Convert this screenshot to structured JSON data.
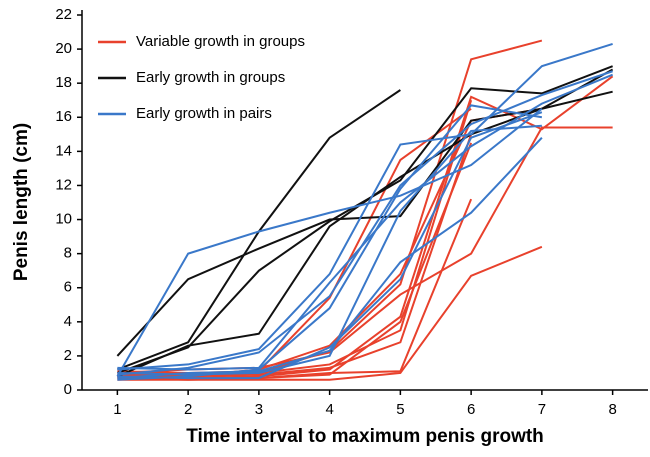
{
  "chart_data": {
    "type": "line",
    "y_label": "Penis length (cm)",
    "x_label": "Time interval to maximum penis growth",
    "x": [
      1,
      2,
      3,
      4,
      5,
      6,
      7,
      8
    ],
    "xlim": [
      0.5,
      8.5
    ],
    "xticks": [
      1,
      2,
      3,
      4,
      5,
      6,
      7,
      8
    ],
    "ylim": [
      0,
      22
    ],
    "yticks": [
      0,
      2,
      4,
      6,
      8,
      10,
      12,
      14,
      16,
      18,
      20,
      22
    ],
    "legend": "top-left",
    "series": [
      {
        "name": "Variable growth in groups",
        "color": "#e8412c",
        "lines": [
          [
            0.9,
            0.8,
            1.0,
            2.3,
            6.2,
            19.4,
            20.5,
            null
          ],
          [
            0.8,
            0.7,
            0.8,
            1.2,
            4.3,
            17.2,
            15.3,
            18.4
          ],
          [
            0.7,
            0.6,
            0.6,
            0.6,
            1.0,
            6.7,
            8.4,
            null
          ],
          [
            1.0,
            1.2,
            1.3,
            2.2,
            5.6,
            8.0,
            15.4,
            15.4
          ],
          [
            0.8,
            0.7,
            0.7,
            1.0,
            1.1,
            11.2,
            null,
            null
          ],
          [
            0.9,
            0.9,
            1.0,
            1.5,
            3.5,
            17.0,
            null,
            null
          ],
          [
            0.7,
            0.8,
            0.9,
            1.3,
            2.8,
            15.0,
            null,
            null
          ],
          [
            1.1,
            1.0,
            1.1,
            5.4,
            13.5,
            16.5,
            null,
            null
          ],
          [
            0.6,
            0.6,
            0.7,
            0.9,
            4.0,
            14.5,
            null,
            null
          ],
          [
            0.8,
            0.8,
            1.2,
            2.6,
            6.8,
            15.8,
            16.5,
            null
          ]
        ]
      },
      {
        "name": "Early growth in groups",
        "color": "#111111",
        "lines": [
          [
            2.0,
            6.5,
            8.3,
            10.0,
            10.2,
            15.8,
            16.5,
            17.5
          ],
          [
            1.2,
            2.8,
            9.3,
            14.8,
            17.6,
            null,
            null,
            null
          ],
          [
            1.0,
            2.5,
            7.0,
            9.9,
            12.3,
            17.7,
            17.4,
            19.0
          ],
          [
            0.8,
            2.6,
            3.3,
            9.6,
            12.5,
            15.0,
            16.5,
            18.8
          ]
        ]
      },
      {
        "name": "Early growth in pairs",
        "color": "#3a78c9",
        "lines": [
          [
            0.8,
            8.0,
            9.3,
            10.4,
            11.4,
            13.2,
            16.5,
            null
          ],
          [
            1.2,
            1.5,
            2.4,
            6.8,
            14.4,
            15.0,
            19.0,
            20.3
          ],
          [
            0.9,
            1.3,
            2.2,
            5.5,
            12.0,
            15.6,
            17.3,
            18.7
          ],
          [
            0.7,
            1.0,
            1.1,
            2.3,
            7.5,
            10.4,
            14.8,
            null
          ],
          [
            0.6,
            0.8,
            1.2,
            4.8,
            11.8,
            16.7,
            16.0,
            null
          ],
          [
            1.3,
            1.2,
            1.3,
            6.3,
            11.0,
            14.3,
            16.8,
            18.5
          ],
          [
            0.8,
            0.7,
            0.7,
            2.5,
            6.5,
            14.8,
            16.3,
            null
          ],
          [
            1.0,
            0.9,
            1.0,
            2.0,
            10.5,
            15.2,
            15.5,
            null
          ]
        ]
      }
    ]
  }
}
